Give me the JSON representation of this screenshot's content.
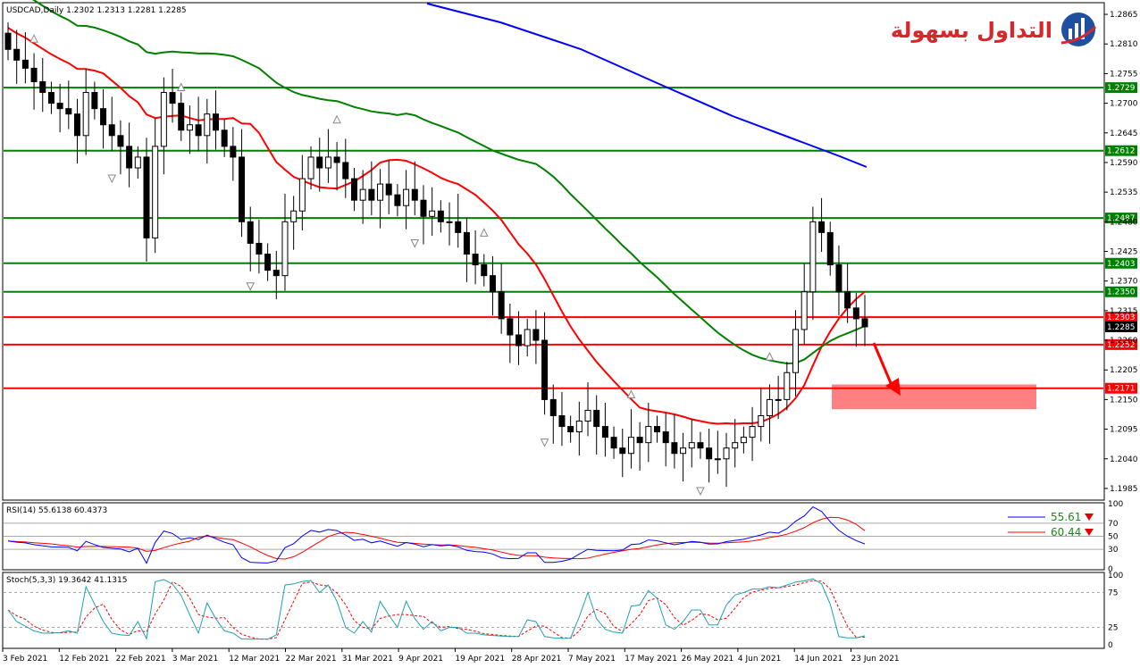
{
  "header": {
    "main": "USDCAD,Daily  1.2302 1.2313 1.2281 1.2285",
    "rsi": "RSI(14) 55.6138 60.4373",
    "stoch": "Stoch(5,3,3) 19.3642 41.1315"
  },
  "logo": {
    "text": "التداول بسهولة"
  },
  "colors": {
    "price_line_green": "#008000",
    "price_line_red": "#ff0000",
    "ma_red": "#ff0000",
    "ma_green": "#008000",
    "ma_blue": "#0000ff",
    "target_zone": "#ff8080",
    "rsi_main": "#0000ff",
    "rsi_signal": "#ff0000",
    "stoch_main": "#20a0b0",
    "stoch_signal": "#ff0000"
  },
  "chart_data": [
    {
      "type": "candlestick",
      "symbol": "USDCAD",
      "timeframe": "Daily",
      "ylim": [
        1.1965,
        1.2885
      ],
      "y_ticks": [
        "1.2865",
        "1.2810",
        "1.2755",
        "1.2700",
        "1.2645",
        "1.2590",
        "1.2535",
        "1.2480",
        "1.2425",
        "1.2370",
        "1.2315",
        "1.2260",
        "1.2205",
        "1.2150",
        "1.2095",
        "1.2040",
        "1.1985"
      ],
      "x_ticks": [
        "3 Feb 2021",
        "12 Feb 2021",
        "22 Feb 2021",
        "3 Mar 2021",
        "12 Mar 2021",
        "22 Mar 2021",
        "31 Mar 2021",
        "9 Apr 2021",
        "19 Apr 2021",
        "28 Apr 2021",
        "7 May 2021",
        "17 May 2021",
        "26 May 2021",
        "4 Jun 2021",
        "14 Jun 2021",
        "23 Jun 2021"
      ],
      "levels": [
        {
          "value": 1.2729,
          "label": "1.2729",
          "color": "#008000"
        },
        {
          "value": 1.2612,
          "label": "1.2612",
          "color": "#008000"
        },
        {
          "value": 1.2487,
          "label": "1.2487",
          "color": "#008000"
        },
        {
          "value": 1.2403,
          "label": "1.2403",
          "color": "#008000"
        },
        {
          "value": 1.235,
          "label": "1.2350",
          "color": "#008000"
        },
        {
          "value": 1.2303,
          "label": "1.2303",
          "color": "#ff0000"
        },
        {
          "value": 1.2252,
          "label": "1.2252",
          "color": "#ff0000"
        },
        {
          "value": 1.2171,
          "label": "1.2171",
          "color": "#ff0000"
        }
      ],
      "current_price": "1.2285",
      "closes": [
        1.28,
        1.278,
        1.2765,
        1.274,
        1.272,
        1.27,
        1.269,
        1.268,
        1.264,
        1.272,
        1.269,
        1.266,
        1.264,
        1.262,
        1.258,
        1.26,
        1.245,
        1.262,
        1.272,
        1.27,
        1.265,
        1.266,
        1.264,
        1.268,
        1.265,
        1.262,
        1.26,
        1.248,
        1.244,
        1.242,
        1.239,
        1.238,
        1.248,
        1.25,
        1.256,
        1.26,
        1.258,
        1.26,
        1.259,
        1.256,
        1.252,
        1.254,
        1.252,
        1.255,
        1.253,
        1.251,
        1.254,
        1.252,
        1.249,
        1.25,
        1.248,
        1.248,
        1.246,
        1.242,
        1.24,
        1.238,
        1.235,
        1.23,
        1.227,
        1.225,
        1.228,
        1.226,
        1.215,
        1.212,
        1.21,
        1.209,
        1.211,
        1.213,
        1.21,
        1.208,
        1.206,
        1.205,
        1.208,
        1.207,
        1.21,
        1.209,
        1.207,
        1.205,
        1.206,
        1.207,
        1.206,
        1.204,
        1.204,
        1.206,
        1.207,
        1.208,
        1.21,
        1.212,
        1.215,
        1.215,
        1.22,
        1.228,
        1.235,
        1.248,
        1.246,
        1.24,
        1.235,
        1.232,
        1.23,
        1.2285
      ],
      "series": [
        {
          "name": "MA red",
          "color": "#ff0000"
        },
        {
          "name": "MA green",
          "color": "#008000"
        },
        {
          "name": "MA blue",
          "color": "#0000ff"
        }
      ],
      "target_zone": {
        "from": 1.2132,
        "to": 1.2178
      },
      "annotation": "downward arrow toward 1.2171"
    },
    {
      "type": "line",
      "title": "RSI(14) 55.6138 60.4373",
      "ylim": [
        0,
        100
      ],
      "y_ticks": [
        "100",
        "70",
        "50",
        "30",
        "0"
      ],
      "levels": [
        70,
        50,
        30
      ],
      "legend": [
        {
          "label": "55.61",
          "color": "#0000ff"
        },
        {
          "label": "60.44",
          "color": "#ff0000"
        }
      ],
      "series": [
        {
          "name": "RSI",
          "last": 55.61
        },
        {
          "name": "Signal",
          "last": 60.44
        }
      ]
    },
    {
      "type": "line",
      "title": "Stoch(5,3,3) 19.3642 41.1315",
      "ylim": [
        0,
        100
      ],
      "y_ticks": [
        "100",
        "75",
        "25",
        "0"
      ],
      "levels": [
        75,
        25
      ],
      "series": [
        {
          "name": "%K",
          "last": 19.36
        },
        {
          "name": "%D",
          "last": 41.13
        }
      ]
    }
  ]
}
